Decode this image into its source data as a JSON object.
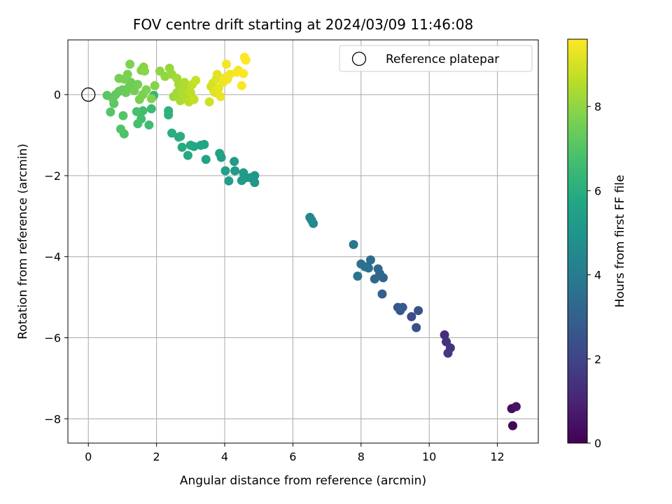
{
  "chart_data": {
    "type": "scatter",
    "title": "FOV centre drift starting at 2024/03/09 11:46:08",
    "xlabel": "Angular distance from reference (arcmin)",
    "ylabel": "Rotation from reference (arcmin)",
    "xlim": [
      -0.6,
      13.2
    ],
    "ylim": [
      -8.6,
      1.35
    ],
    "xticks": [
      0,
      2,
      4,
      6,
      8,
      10,
      12
    ],
    "yticks": [
      -8,
      -6,
      -4,
      -2,
      0
    ],
    "grid": true,
    "legend": {
      "placement": "top-right",
      "entries": [
        {
          "label": "Reference platepar",
          "marker": "open-circle"
        }
      ]
    },
    "reference": {
      "x": 0,
      "y": 0
    },
    "colorbar": {
      "label": "Hours from first FF file",
      "colormap": "viridis",
      "range": [
        0,
        9.6
      ],
      "ticks": [
        0,
        2,
        4,
        6,
        8
      ]
    },
    "points": [
      [
        12.45,
        -8.17,
        0.1
      ],
      [
        12.42,
        -7.75,
        0.3
      ],
      [
        12.55,
        -7.7,
        0.5
      ],
      [
        10.45,
        -5.93,
        1.3
      ],
      [
        10.5,
        -6.1,
        1.4
      ],
      [
        10.62,
        -6.25,
        1.5
      ],
      [
        10.55,
        -6.38,
        1.6
      ],
      [
        9.48,
        -5.48,
        2.2
      ],
      [
        9.62,
        -5.75,
        2.3
      ],
      [
        9.68,
        -5.33,
        2.4
      ],
      [
        9.08,
        -5.25,
        2.6
      ],
      [
        9.15,
        -5.33,
        2.7
      ],
      [
        9.22,
        -5.25,
        2.8
      ],
      [
        8.62,
        -4.92,
        3.0
      ],
      [
        8.65,
        -4.52,
        3.1
      ],
      [
        8.55,
        -4.42,
        3.2
      ],
      [
        8.4,
        -4.55,
        3.25
      ],
      [
        8.5,
        -4.3,
        3.3
      ],
      [
        8.28,
        -4.08,
        3.4
      ],
      [
        8.22,
        -4.28,
        3.5
      ],
      [
        8.12,
        -4.25,
        3.55
      ],
      [
        8.0,
        -4.18,
        3.6
      ],
      [
        7.9,
        -4.48,
        3.65
      ],
      [
        7.78,
        -3.7,
        3.8
      ],
      [
        6.5,
        -3.03,
        4.3
      ],
      [
        6.55,
        -3.1,
        4.4
      ],
      [
        6.6,
        -3.18,
        4.5
      ],
      [
        4.88,
        -2.0,
        5.0
      ],
      [
        4.88,
        -2.17,
        5.05
      ],
      [
        4.75,
        -2.05,
        5.1
      ],
      [
        4.62,
        -2.05,
        5.15
      ],
      [
        4.55,
        -1.93,
        5.2
      ],
      [
        4.5,
        -2.12,
        5.25
      ],
      [
        4.3,
        -1.88,
        5.3
      ],
      [
        4.28,
        -1.65,
        5.35
      ],
      [
        4.12,
        -2.13,
        5.4
      ],
      [
        4.02,
        -1.88,
        5.45
      ],
      [
        3.9,
        -1.55,
        5.5
      ],
      [
        3.85,
        -1.45,
        5.55
      ],
      [
        3.45,
        -1.6,
        5.6
      ],
      [
        3.4,
        -1.23,
        5.65
      ],
      [
        3.3,
        -1.25,
        5.7
      ],
      [
        3.1,
        -1.28,
        5.75
      ],
      [
        3.0,
        -1.25,
        5.8
      ],
      [
        2.92,
        -1.5,
        5.85
      ],
      [
        2.75,
        -1.3,
        5.9
      ],
      [
        2.7,
        -1.03,
        5.95
      ],
      [
        2.65,
        -1.05,
        6.0
      ],
      [
        2.45,
        -0.95,
        6.05
      ],
      [
        2.35,
        -0.5,
        6.1
      ],
      [
        2.35,
        -0.4,
        6.15
      ],
      [
        1.92,
        -0.02,
        6.4
      ],
      [
        1.85,
        -0.35,
        6.5
      ],
      [
        1.78,
        -0.75,
        6.6
      ],
      [
        1.6,
        -0.4,
        6.65
      ],
      [
        1.55,
        -0.6,
        6.7
      ],
      [
        1.45,
        -0.72,
        6.75
      ],
      [
        1.42,
        -0.42,
        6.8
      ],
      [
        1.05,
        -0.97,
        6.9
      ],
      [
        0.95,
        -0.85,
        6.95
      ],
      [
        1.02,
        -0.52,
        7.0
      ],
      [
        0.65,
        -0.43,
        7.05
      ],
      [
        0.55,
        -0.02,
        7.1
      ],
      [
        0.75,
        -0.22,
        7.15
      ],
      [
        0.8,
        0.0,
        7.2
      ],
      [
        0.72,
        -0.1,
        7.25
      ],
      [
        0.9,
        0.08,
        7.3
      ],
      [
        1.0,
        0.12,
        7.35
      ],
      [
        1.1,
        0.05,
        7.4
      ],
      [
        1.2,
        0.2,
        7.45
      ],
      [
        1.25,
        0.3,
        7.5
      ],
      [
        1.35,
        0.1,
        7.55
      ],
      [
        1.45,
        0.25,
        7.6
      ],
      [
        1.5,
        -0.12,
        7.65
      ],
      [
        1.6,
        0.0,
        7.7
      ],
      [
        1.7,
        0.12,
        7.75
      ],
      [
        1.85,
        -0.1,
        7.8
      ],
      [
        1.95,
        0.22,
        7.85
      ],
      [
        0.9,
        0.4,
        7.6
      ],
      [
        1.05,
        0.38,
        7.65
      ],
      [
        1.15,
        0.5,
        7.7
      ],
      [
        1.22,
        0.75,
        7.75
      ],
      [
        1.55,
        0.6,
        7.8
      ],
      [
        1.62,
        0.68,
        7.85
      ],
      [
        1.65,
        0.58,
        7.9
      ],
      [
        2.1,
        0.58,
        8.0
      ],
      [
        2.25,
        0.45,
        8.05
      ],
      [
        2.38,
        0.65,
        8.1
      ],
      [
        2.45,
        0.5,
        8.15
      ],
      [
        2.5,
        -0.05,
        8.2
      ],
      [
        2.6,
        0.05,
        8.25
      ],
      [
        2.65,
        0.25,
        8.3
      ],
      [
        2.7,
        -0.15,
        8.35
      ],
      [
        2.75,
        0.05,
        8.4
      ],
      [
        2.82,
        0.3,
        8.45
      ],
      [
        2.85,
        -0.08,
        8.5
      ],
      [
        2.9,
        0.12,
        8.55
      ],
      [
        2.95,
        -0.18,
        8.6
      ],
      [
        3.0,
        0.05,
        8.65
      ],
      [
        3.05,
        0.25,
        8.7
      ],
      [
        3.1,
        -0.12,
        8.75
      ],
      [
        3.15,
        0.35,
        8.8
      ],
      [
        2.6,
        0.4,
        8.25
      ],
      [
        2.78,
        0.2,
        8.4
      ],
      [
        3.55,
        -0.18,
        8.9
      ],
      [
        3.6,
        0.2,
        8.95
      ],
      [
        3.65,
        0.28,
        9.0
      ],
      [
        3.68,
        0.1,
        9.05
      ],
      [
        3.72,
        0.05,
        9.1
      ],
      [
        3.75,
        0.38,
        9.15
      ],
      [
        3.78,
        0.5,
        9.2
      ],
      [
        3.82,
        0.15,
        9.25
      ],
      [
        3.88,
        -0.05,
        9.3
      ],
      [
        3.95,
        0.3,
        9.35
      ],
      [
        4.02,
        0.42,
        9.4
      ],
      [
        4.08,
        0.38,
        9.42
      ],
      [
        4.05,
        0.75,
        9.45
      ],
      [
        4.15,
        0.5,
        9.48
      ],
      [
        4.35,
        0.55,
        9.5
      ],
      [
        4.4,
        0.6,
        9.52
      ],
      [
        4.5,
        0.22,
        9.54
      ],
      [
        4.55,
        0.52,
        9.56
      ],
      [
        4.58,
        0.92,
        9.58
      ],
      [
        4.62,
        0.85,
        9.6
      ]
    ]
  }
}
